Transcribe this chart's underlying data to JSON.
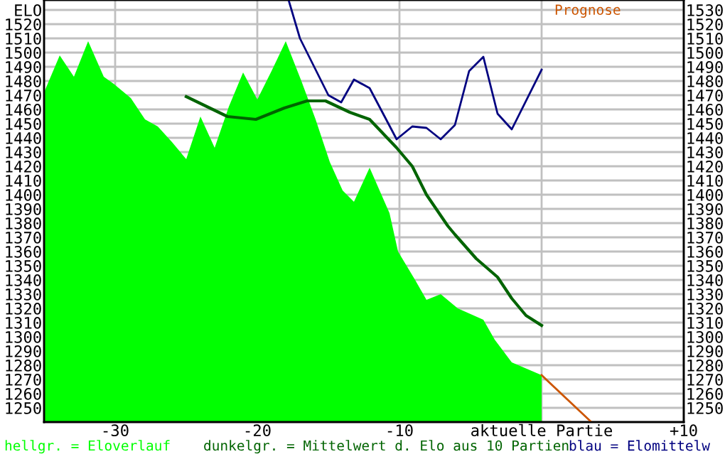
{
  "chart_data": {
    "type": "line",
    "xlim": [
      -35,
      10
    ],
    "ylim": [
      1240,
      1537
    ],
    "xticks": [
      {
        "value": -30,
        "label": "-30"
      },
      {
        "value": -20,
        "label": "-20"
      },
      {
        "value": -10,
        "label": "-10"
      },
      {
        "value": 0,
        "label": "aktuelle Partie"
      },
      {
        "value": 10,
        "label": "+10"
      }
    ],
    "yticks": [
      1250,
      1260,
      1270,
      1280,
      1290,
      1300,
      1310,
      1320,
      1330,
      1340,
      1350,
      1360,
      1370,
      1380,
      1390,
      1400,
      1410,
      1420,
      1430,
      1440,
      1450,
      1460,
      1470,
      1480,
      1490,
      1500,
      1510,
      1520,
      {
        "value": 1530,
        "label": "ELO"
      }
    ],
    "y2lim": [
      1240,
      1537
    ],
    "y2ticks": [
      1250,
      1260,
      1270,
      1280,
      1290,
      1300,
      1310,
      1320,
      1330,
      1340,
      1350,
      1360,
      1370,
      1380,
      1390,
      1400,
      1410,
      1420,
      1430,
      1440,
      1450,
      1460,
      1470,
      1480,
      1490,
      1500,
      1510,
      1520,
      1530
    ],
    "grid": true,
    "legend": "bottom",
    "marker": "none",
    "line_style": "solid",
    "series": [
      {
        "name": "hellgr. = Eloverlauf",
        "type": "area",
        "color": "#00ff00",
        "x": [
          -35,
          -33.9,
          -32.9,
          -31.9,
          -30.8,
          -30.1,
          -28.9,
          -27.9,
          -27,
          -26,
          -25,
          -24,
          -23,
          -22,
          -21,
          -20,
          -19,
          -18,
          -16.9,
          -15.9,
          -14.9,
          -14,
          -13.2,
          -12.1,
          -10.7,
          -10.1,
          -8.9,
          -8.1,
          -7.1,
          -5.9,
          -4.1,
          -3.3,
          -2.1,
          0
        ],
        "values": [
          1472,
          1498,
          1483,
          1508,
          1483,
          1478,
          1468,
          1453,
          1448,
          1437,
          1425,
          1455,
          1433,
          1462,
          1486,
          1467,
          1487,
          1508,
          1480,
          1453,
          1423,
          1403,
          1395,
          1419,
          1387,
          1360,
          1340,
          1326,
          1330,
          1320,
          1312,
          1298,
          1282,
          1273
        ]
      },
      {
        "name": "dunkelgr. = Mittelwert d. Elo aus 10 Partien",
        "color": "#006400",
        "x": [
          -25,
          -22.1,
          -20.1,
          -18.1,
          -16.5,
          -15.2,
          -13.5,
          -12.1,
          -10.2,
          -9.1,
          -8.1,
          -6.6,
          -6.1,
          -4.6,
          -3.1,
          -2.1,
          -1.1,
          0
        ],
        "values": [
          1469,
          1455,
          1453,
          1461,
          1466,
          1466,
          1458,
          1453,
          1433,
          1420,
          1400,
          1378,
          1372,
          1355,
          1342,
          1327,
          1315,
          1308
        ]
      },
      {
        "name": "blau = Elomittelw",
        "color": "#000080",
        "x": [
          -17.8,
          -17,
          -15,
          -14.1,
          -13.2,
          -12.1,
          -10.2,
          -9.1,
          -8.1,
          -7.1,
          -6.1,
          -5.1,
          -4.1,
          -3.1,
          -2.1,
          0
        ],
        "values": [
          1537,
          1510,
          1470,
          1465,
          1481,
          1475,
          1439,
          1448,
          1447,
          1439,
          1449,
          1487,
          1497,
          1457,
          1446,
          1488
        ]
      },
      {
        "name": "Prognose",
        "color": "#cc5500",
        "x": [
          0,
          3.5
        ],
        "values": [
          1273,
          1240
        ]
      }
    ]
  }
}
